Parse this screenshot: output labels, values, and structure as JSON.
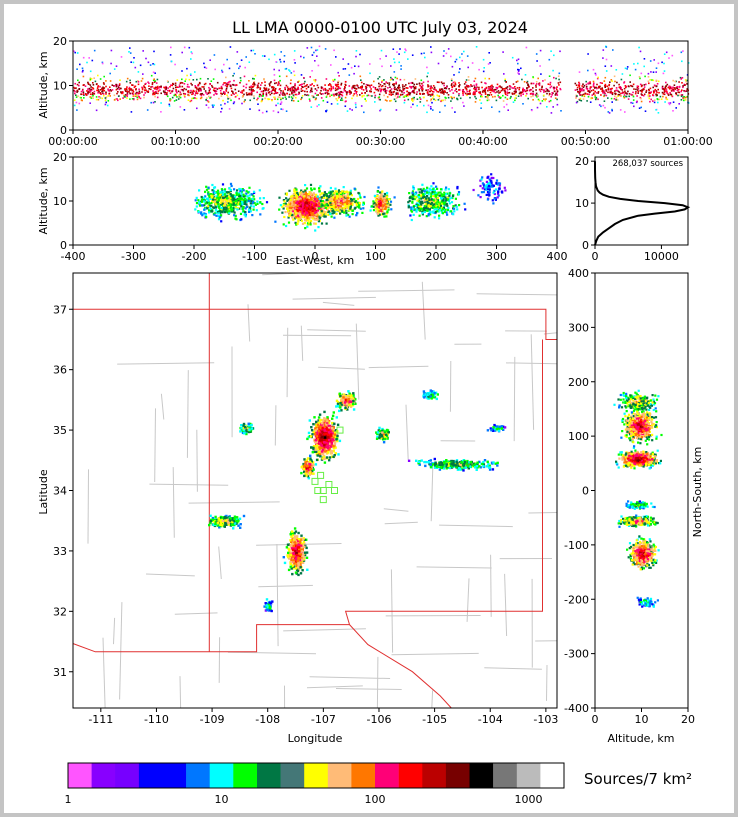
{
  "title": "LL LMA 0000-0100 UTC July 03, 2024",
  "colors": {
    "state_line": "#e03030",
    "county_line": "#c8c8c8",
    "marker": "#66ee44",
    "frame": "#c4c4c4"
  },
  "chart_data": [
    {
      "id": "time-height",
      "type": "heatmap",
      "ylabel": "Altitude, km",
      "ylim": [
        0,
        20
      ],
      "yticks": [
        "0",
        "10",
        "20"
      ],
      "xticks": [
        "00:00:00",
        "00:10:00",
        "00:20:00",
        "00:30:00",
        "00:40:00",
        "00:50:00",
        "01:00:00"
      ],
      "data_gap_minutes": [
        47.6,
        48.9
      ]
    },
    {
      "id": "ew-height",
      "type": "heatmap",
      "xlabel": "East-West, km",
      "ylabel": "Altitude, km",
      "xlim": [
        -400,
        400
      ],
      "ylim": [
        0,
        20
      ],
      "xticks": [
        "-400",
        "-300",
        "-200",
        "-100",
        "0",
        "100",
        "200",
        "300",
        "400"
      ],
      "yticks": [
        "0",
        "10",
        "20"
      ]
    },
    {
      "id": "altitude-histogram",
      "type": "line",
      "annotation": "268,037 sources",
      "xlim": [
        0,
        14000
      ],
      "ylim": [
        0,
        21
      ],
      "xticks": [
        "0",
        "10000"
      ],
      "yticks": [
        "0",
        "10",
        "20"
      ],
      "profile": {
        "altitude_km": [
          0,
          1,
          2,
          3,
          4,
          5,
          6,
          7,
          7.5,
          8,
          8.5,
          9,
          9.5,
          10,
          10.5,
          11,
          11.5,
          12,
          12.5,
          13,
          14,
          15,
          16,
          17,
          18,
          20
        ],
        "sources": [
          0,
          200,
          500,
          1200,
          2100,
          3000,
          4200,
          6500,
          9000,
          12000,
          13500,
          14000,
          13200,
          10500,
          6500,
          3800,
          2100,
          1200,
          700,
          400,
          150,
          70,
          30,
          10,
          5,
          0
        ]
      }
    },
    {
      "id": "plan-view",
      "type": "heatmap",
      "xlabel": "Longitude",
      "ylabel": "Latitude",
      "xlim": [
        -111.5,
        -102.8
      ],
      "ylim": [
        30.4,
        37.6
      ],
      "xticks": [
        "-111",
        "-110",
        "-109",
        "-108",
        "-107",
        "-106",
        "-105",
        "-104",
        "-103"
      ],
      "yticks": [
        "31",
        "32",
        "33",
        "34",
        "35",
        "36",
        "37"
      ]
    },
    {
      "id": "ns-height",
      "type": "heatmap",
      "xlabel": "Altitude, km",
      "ylabel": "North-South, km",
      "xlim": [
        0,
        20
      ],
      "ylim": [
        -400,
        400
      ],
      "xticks": [
        "0",
        "10",
        "20"
      ],
      "yticks": [
        "-400",
        "-300",
        "-200",
        "-100",
        "0",
        "100",
        "200",
        "300",
        "400"
      ]
    }
  ],
  "colorbar": {
    "label": "Sources/7 km²",
    "ticks": [
      "1",
      "10",
      "100",
      "1000"
    ],
    "colors": [
      "#ff55ff",
      "#8800ff",
      "#7700ff",
      "#0000ff",
      "#0000ff",
      "#0077ff",
      "#00ffff",
      "#00ff00",
      "#007744",
      "#447777",
      "#ffff00",
      "#ffbb77",
      "#ff7700",
      "#ff0077",
      "#ff0000",
      "#bb0000",
      "#770000",
      "#000000",
      "#777777",
      "#bbbbbb",
      "#ffffff"
    ]
  },
  "plot_colors": [
    "#ff55ff",
    "#8800ff",
    "#0000ff",
    "#0077ff",
    "#00ffff",
    "#00ff00",
    "#007744",
    "#ffff00",
    "#ffbb77",
    "#ff7700",
    "#ff0077",
    "#ff0000",
    "#bb0000",
    "#770000",
    "#000000",
    "#777777",
    "#bbbbbb"
  ]
}
